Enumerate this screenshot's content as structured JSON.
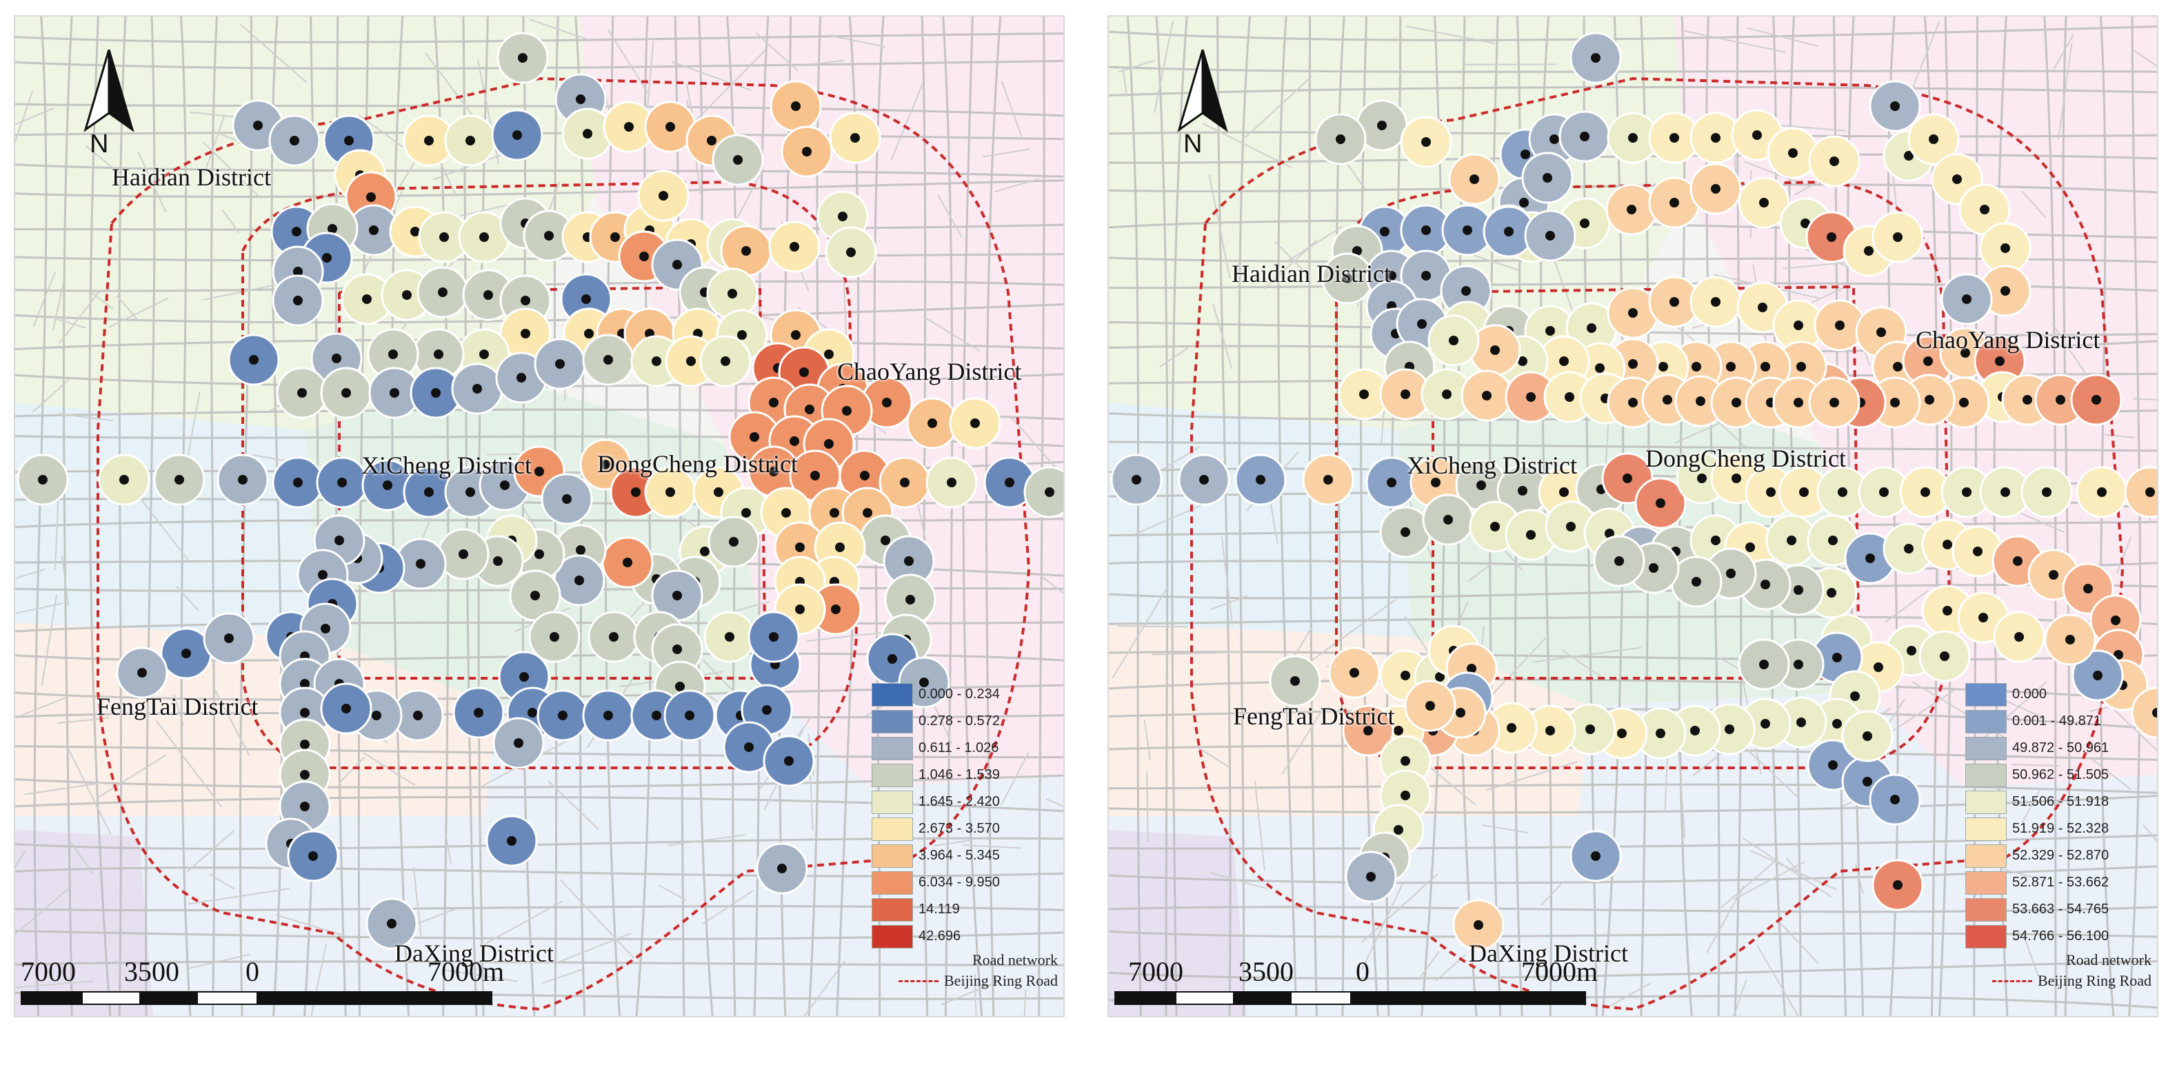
{
  "left_map": {
    "districts": {
      "haidian": "Haidian District",
      "chaoyang": "ChaoYang District",
      "xicheng": "XiCheng District",
      "dongcheng": "DongCheng District",
      "fengtai": "FengTai District",
      "daxing": "DaXing District"
    },
    "legend": [
      {
        "label": "0.000 - 0.234",
        "color": "#3d6bb2"
      },
      {
        "label": "0.278 - 0.572",
        "color": "#6a89bb"
      },
      {
        "label": "0.611 - 1.026",
        "color": "#a5b3c4"
      },
      {
        "label": "1.046 - 1.539",
        "color": "#c9d0c0"
      },
      {
        "label": "1.645 - 2.420",
        "color": "#e8ebc6"
      },
      {
        "label": "2.673 - 3.570",
        "color": "#fbe8b0"
      },
      {
        "label": "3.964 - 5.345",
        "color": "#f8c28d"
      },
      {
        "label": "6.034 - 9.950",
        "color": "#ee9468"
      },
      {
        "label": "14.119",
        "color": "#e06848"
      },
      {
        "label": "42.696",
        "color": "#cc3527"
      }
    ],
    "legend_road": "Road network",
    "legend_ring": "Beijing Ring Road",
    "scale": [
      "7000",
      "3500",
      "0",
      "7000m"
    ],
    "north": "N"
  },
  "right_map": {
    "districts": {
      "haidian": "Haidian District",
      "chaoyang": "ChaoYang District",
      "xicheng": "XiCheng District",
      "dongcheng": "DongCheng District",
      "fengtai": "FengTai District",
      "daxing": "DaXing District"
    },
    "legend": [
      {
        "label": "0.000",
        "color": "#6a8fc8"
      },
      {
        "label": "0.001 - 49.871",
        "color": "#8aa2c6"
      },
      {
        "label": "49.872 - 50.961",
        "color": "#a8b5c6"
      },
      {
        "label": "50.962 - 51.505",
        "color": "#c9cfc0"
      },
      {
        "label": "51.506 - 51.918",
        "color": "#eaedc8"
      },
      {
        "label": "51.919 - 52.328",
        "color": "#fbecbd"
      },
      {
        "label": "52.329 - 52.870",
        "color": "#f9d1a4"
      },
      {
        "label": "52.871 - 53.662",
        "color": "#f3b08b"
      },
      {
        "label": "53.663 - 54.765",
        "color": "#e9876a"
      },
      {
        "label": "54.766 - 56.100",
        "color": "#dd5a4d"
      }
    ],
    "legend_road": "Road network",
    "legend_ring": "Beijing Ring Road",
    "scale": [
      "7000",
      "3500",
      "0",
      "7000m"
    ],
    "north": "N"
  },
  "colors": {
    "road": "#bcbcbc",
    "ring_road": "#cc2a2a",
    "bg_haidian": "#eef5e2",
    "bg_chaoyang": "#fbeaf2",
    "bg_center": "#e3f1e6",
    "bg_fengtai": "#fbefe8",
    "bg_daxing": "#ebf1f8",
    "bg_west": "#e6f2f8"
  }
}
